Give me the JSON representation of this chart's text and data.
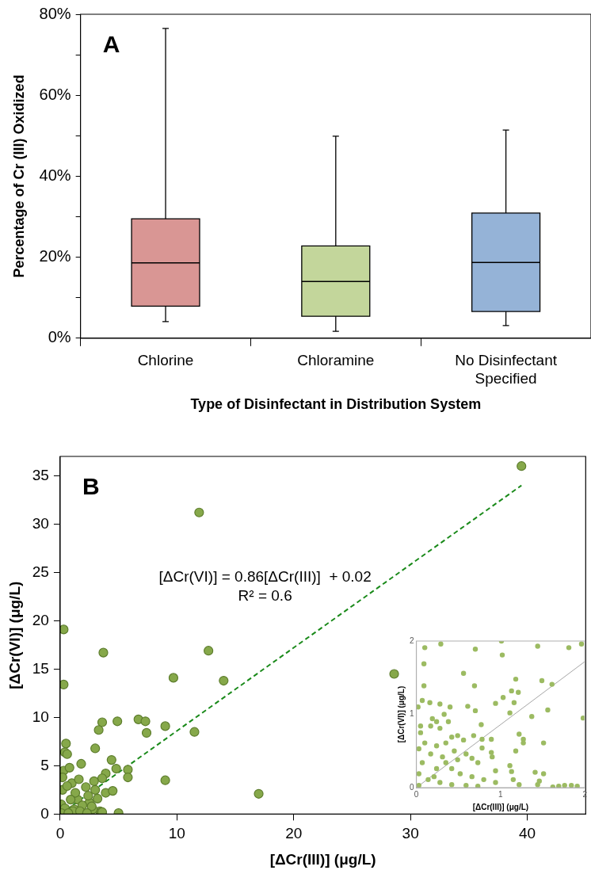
{
  "chart_data": [
    {
      "type": "box",
      "annotations": [
        "A"
      ],
      "xlabel": "Type of Disinfectant in Distribution System",
      "ylabel": "Percentage of Cr (III) Oxidized",
      "categories": [
        "Chlorine",
        "Chloramine",
        "No Disinfectant Specified"
      ],
      "colors": [
        "#d99694",
        "#c3d69b",
        "#95b3d7"
      ],
      "boxes": [
        {
          "low": 4.1,
          "q1": 7.9,
          "median": 18.6,
          "q3": 29.5,
          "high": 76.5
        },
        {
          "low": 1.7,
          "q1": 5.4,
          "median": 14.0,
          "q3": 22.8,
          "high": 49.9
        },
        {
          "low": 3.1,
          "q1": 6.6,
          "median": 18.7,
          "q3": 30.9,
          "high": 51.4
        }
      ],
      "ylim": [
        0,
        80
      ],
      "yticks": [
        {
          "value": 0,
          "label": "0%"
        },
        {
          "value": 10,
          "label": null
        },
        {
          "value": 20,
          "label": "20%"
        },
        {
          "value": 30,
          "label": null
        },
        {
          "value": 40,
          "label": "40%"
        },
        {
          "value": 50,
          "label": null
        },
        {
          "value": 60,
          "label": "60%"
        },
        {
          "value": 70,
          "label": null
        },
        {
          "value": 80,
          "label": "80%"
        }
      ],
      "grid": false,
      "legend": false
    },
    {
      "type": "scatter",
      "annotations": [
        "B",
        "[ΔCr(VI)] = 0.86[ΔCr(III)]  + 0.02",
        "R² = 0.6"
      ],
      "xlabel": "[ΔCr(III)] (μg/L)",
      "ylabel": "[ΔCr(VI)] (μg/L)",
      "xlim": [
        0,
        45
      ],
      "xticks": [
        0,
        10,
        20,
        30,
        40
      ],
      "ylim": [
        0,
        37
      ],
      "yticks": [
        0,
        5,
        10,
        15,
        20,
        25,
        30,
        35
      ],
      "grid": false,
      "legend": false,
      "series": [
        {
          "type": "scatter",
          "color": "#86a84a",
          "marker": "circle",
          "x": [
            39.5,
            11.9,
            0.3,
            3.7,
            12.7,
            0.3,
            9.7,
            14,
            28.6,
            6.7,
            7.3,
            4.9,
            3.6,
            3.3,
            7.4,
            9,
            11.5,
            3,
            0.5,
            0.4,
            0.6,
            1.8,
            4.4,
            5.8,
            5.8,
            4.8,
            3.9,
            3.6,
            2.9,
            9,
            17,
            3.9,
            4.5,
            5,
            0.3,
            0.8,
            1,
            1.6,
            2.2,
            0.2,
            1.5,
            2.5,
            3.4,
            2.8,
            1.2,
            0.1,
            3,
            0.2,
            0.6,
            1.3,
            2.4,
            3.2,
            0.9,
            1.9,
            0.4,
            2.7,
            1.1,
            3.5,
            0.1,
            0.7,
            1.7,
            2.3,
            3.6
          ],
          "values": [
            36,
            31.2,
            19.1,
            16.7,
            16.9,
            13.4,
            14.1,
            13.8,
            14.5,
            9.8,
            9.6,
            9.6,
            9.5,
            8.7,
            8.4,
            9.1,
            8.5,
            6.8,
            7.3,
            6.4,
            6.2,
            5.2,
            5.6,
            4.6,
            3.8,
            4.7,
            4.2,
            3.7,
            3.4,
            3.5,
            2.1,
            2.2,
            2.4,
            0.1,
            4.5,
            4.8,
            3.2,
            3.6,
            2.8,
            2.5,
            1.5,
            1.2,
            0.3,
            0.5,
            0.5,
            1,
            2.5,
            3.8,
            2.9,
            2.2,
            1.9,
            1.6,
            1.5,
            0.9,
            0.6,
            0.8,
            0.3,
            0.2,
            0.1,
            0.1,
            0.3,
            0.1,
            0.2
          ]
        },
        {
          "type": "line",
          "color": "#1a8a1a",
          "line_style": "dashed",
          "marker": "none",
          "x": [
            0,
            39.5
          ],
          "values": [
            0,
            34
          ]
        }
      ]
    },
    {
      "type": "scatter",
      "xlabel": "[ΔCr(III)] (μg/L)",
      "ylabel": "[ΔCr(VI)] (μg/L)",
      "xlim": [
        0,
        2
      ],
      "xticks": [
        0,
        1,
        2
      ],
      "ylim": [
        0,
        2
      ],
      "yticks": [
        0,
        1,
        2
      ],
      "grid": false,
      "legend": false,
      "series": [
        {
          "type": "scatter",
          "color": "#9cbb62",
          "marker": "circle",
          "x": [
            0.1,
            0.29,
            0.7,
            1.01,
            1.02,
            1.44,
            1.81,
            1.96,
            0.09,
            0.56,
            0.09,
            0.69,
            1.18,
            1.49,
            1.61,
            1.13,
            1.21,
            0.07,
            0.16,
            0.28,
            0.4,
            0.02,
            0.61,
            0.7,
            0.94,
            1.03,
            1.16,
            1.11,
            1.37,
            1.56,
            1.98,
            0.33,
            0.19,
            0.24,
            0.38,
            0.77,
            0.05,
            0.05,
            0.17,
            0.28,
            0.78,
            0.89,
            0.68,
            1.22,
            1.27,
            1.27,
            1.18,
            1.51,
            0.78,
            0.89,
            0.9,
            0.66,
            0.73,
            1.11,
            1.13,
            0.94,
            1.41,
            1.51,
            1.46,
            1.15,
            1.22,
            1.62,
            1.69,
            1.76,
            1.84,
            1.91,
            1.44,
            0.42,
            0.49,
            0.56,
            0.35,
            0.24,
            0.1,
            0.03,
            0.17,
            0.31,
            0.45,
            0.59,
            0.07,
            0.24,
            0.42,
            0.52,
            0.66,
            0.8,
            0.94,
            0.03,
            0.14,
            0.28,
            0.42,
            0.59,
            0.73,
            0.03,
            0.21,
            0.35,
            0.49
          ],
          "values": [
            1.91,
            1.96,
            1.89,
            2.0,
            1.81,
            1.93,
            1.91,
            1.96,
            1.69,
            1.56,
            1.39,
            1.39,
            1.48,
            1.46,
            1.41,
            1.32,
            1.3,
            1.19,
            1.16,
            1.14,
            1.1,
            1.1,
            1.11,
            1.05,
            1.15,
            1.23,
            1.16,
            1.02,
            0.97,
            1.06,
            0.95,
            1.0,
            0.94,
            0.9,
            0.9,
            0.86,
            0.84,
            0.75,
            0.84,
            0.81,
            0.66,
            0.66,
            0.71,
            0.73,
            0.66,
            0.61,
            0.5,
            0.61,
            0.54,
            0.48,
            0.42,
            0.4,
            0.34,
            0.3,
            0.22,
            0.23,
            0.21,
            0.19,
            0.09,
            0.11,
            0.04,
            0.01,
            0.02,
            0.03,
            0.03,
            0.02,
            0.04,
            0.69,
            0.71,
            0.65,
            0.61,
            0.57,
            0.61,
            0.53,
            0.46,
            0.42,
            0.5,
            0.46,
            0.34,
            0.26,
            0.26,
            0.19,
            0.15,
            0.11,
            0.07,
            0.19,
            0.11,
            0.07,
            0.04,
            0.03,
            0.02,
            0.03,
            0.15,
            0.34,
            0.38
          ]
        },
        {
          "type": "line",
          "color": "#a6a6a6",
          "line_style": "solid",
          "marker": "none",
          "x": [
            0,
            2
          ],
          "values": [
            0,
            1.72
          ]
        }
      ]
    }
  ]
}
